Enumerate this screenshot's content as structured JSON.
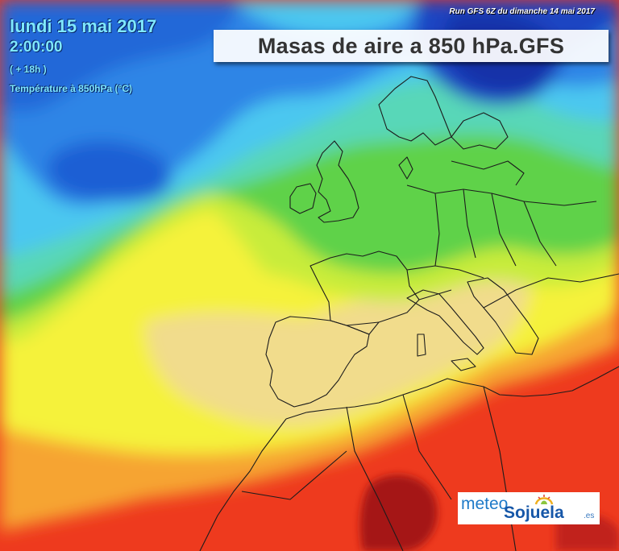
{
  "header": {
    "date": "lundi 15 mai 2017",
    "time": "2:00:00",
    "lead": "( + 18h )",
    "variable": "Température à 850hPa (°C)",
    "run_info": "Run GFS 6Z du dimanche 14 mai 2017"
  },
  "title": "Masas de aire a 850 hPa.GFS",
  "logo": {
    "part1": "meteo",
    "part2": "Sojuela",
    "suffix": ".es"
  },
  "colors": {
    "very_cold": "#1a3fb8",
    "cold": "#2f8ae8",
    "cool": "#52c8f0",
    "mild": "#5ed7c0",
    "green": "#64d74a",
    "yellowgreen": "#c6ec3a",
    "yellow": "#f7f73a",
    "beige": "#f2dc8a",
    "orange": "#f6a433",
    "red": "#f03a1f",
    "dark_red": "#a01418"
  }
}
